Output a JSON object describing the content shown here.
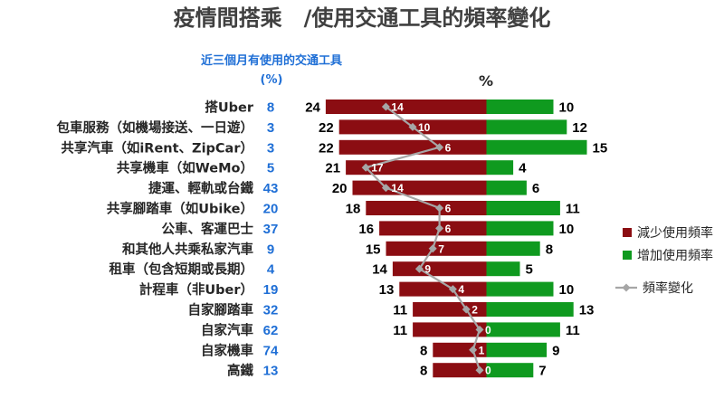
{
  "title": "疫情間搭乘　/使用交通工具的頻率變化",
  "chart_data": {
    "type": "bar",
    "subtitle": "近三個月有使用的交通工具",
    "usage_unit": "(%)",
    "value_header": "%",
    "categories": [
      "搭Uber",
      "包車服務（如機場接送、一日遊）",
      "共享汽車（如iRent、ZipCar）",
      "共享機車（如WeMo）",
      "捷運、輕軌或台鐵",
      "共享腳踏車（如Ubike）",
      "公車、客運巴士",
      "和其他人共乘私家汽車",
      "租車（包含短期或長期）",
      "計程車（非Uber）",
      "自家腳踏車",
      "自家汽車",
      "自家機車",
      "高鐵"
    ],
    "usage": [
      8,
      3,
      3,
      5,
      43,
      20,
      37,
      9,
      4,
      19,
      32,
      62,
      74,
      13
    ],
    "series": [
      {
        "name": "減少使用頻率",
        "values": [
          24,
          22,
          22,
          21,
          20,
          18,
          16,
          15,
          14,
          13,
          11,
          11,
          8,
          8
        ]
      },
      {
        "name": "增加使用頻率",
        "values": [
          10,
          12,
          15,
          4,
          6,
          11,
          10,
          8,
          5,
          10,
          13,
          11,
          9,
          7
        ]
      },
      {
        "name": "頻率變化",
        "values": [
          14,
          10,
          6,
          17,
          14,
          6,
          6,
          7,
          9,
          4,
          2,
          0,
          1,
          0
        ]
      }
    ],
    "colors": {
      "decrease": "#8b0d12",
      "increase": "#0f9a1f",
      "change": "#a6a6a6",
      "usage": "#1f6fd6"
    },
    "legend_position": "right"
  }
}
